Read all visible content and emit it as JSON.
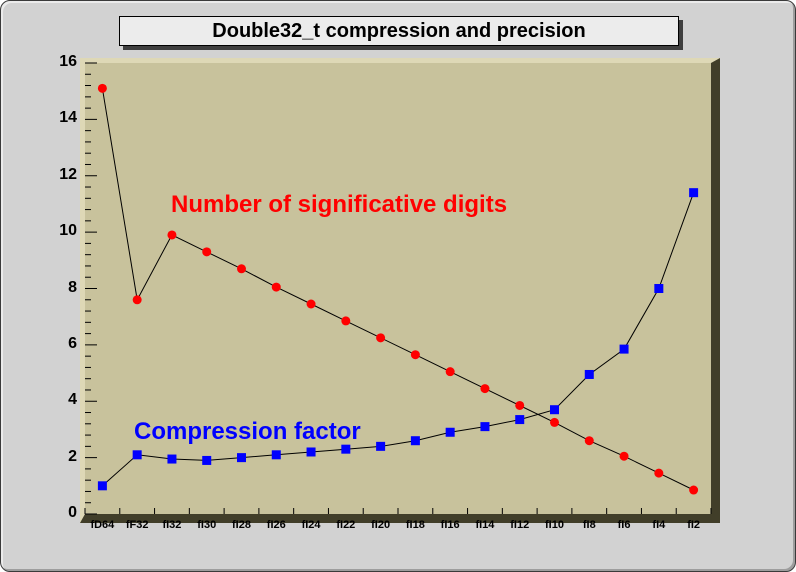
{
  "title": "Double32_t compression and precision",
  "chart_data": {
    "type": "line",
    "categories": [
      "fD64",
      "fF32",
      "fI32",
      "fI30",
      "fI28",
      "fI26",
      "fI24",
      "fI22",
      "fI20",
      "fI18",
      "fI16",
      "fI14",
      "fI12",
      "fI10",
      "fI8",
      "fI6",
      "fI4",
      "fI2"
    ],
    "series": [
      {
        "name": "Number of significative digits",
        "marker": "circle",
        "color": "#ff0000",
        "values": [
          15.1,
          7.6,
          9.9,
          9.3,
          8.7,
          8.05,
          7.45,
          6.85,
          6.25,
          5.65,
          5.05,
          4.45,
          3.85,
          3.25,
          2.6,
          2.05,
          1.45,
          0.85
        ]
      },
      {
        "name": "Compression factor",
        "marker": "square",
        "color": "#0000ff",
        "values": [
          1.0,
          2.1,
          1.95,
          1.9,
          2.0,
          2.1,
          2.2,
          2.3,
          2.4,
          2.6,
          2.9,
          3.1,
          3.35,
          3.7,
          4.95,
          5.85,
          8.0,
          11.4
        ]
      }
    ],
    "annotations": [
      {
        "text": "Number of significative digits",
        "color": "#ff0000"
      },
      {
        "text": "Compression factor",
        "color": "#0000ff"
      }
    ],
    "yticks": [
      0,
      2,
      4,
      6,
      8,
      10,
      12,
      14,
      16
    ],
    "ylim": [
      0,
      16
    ],
    "xlabel": "",
    "ylabel": "",
    "grid": false,
    "legend": "none",
    "frame_color": "#c8c29c",
    "line_color": "#000000"
  }
}
